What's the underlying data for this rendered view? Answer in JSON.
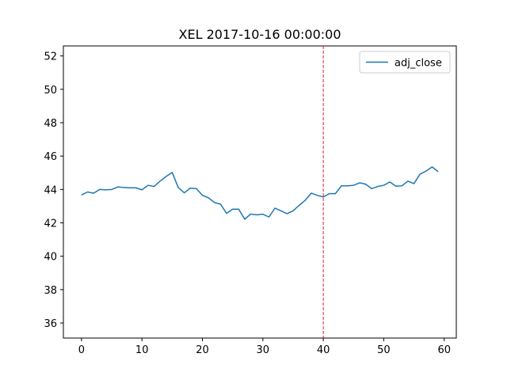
{
  "chart_data": {
    "type": "line",
    "title": "XEL 2017-10-16 00:00:00",
    "xlabel": "",
    "ylabel": "",
    "xlim": [
      -3,
      62
    ],
    "ylim": [
      35.1,
      52.6
    ],
    "x_ticks": [
      0,
      10,
      20,
      30,
      40,
      50,
      60
    ],
    "y_ticks": [
      36,
      38,
      40,
      42,
      44,
      46,
      48,
      50,
      52
    ],
    "grid": false,
    "legend_position": "top-right",
    "vline": {
      "x": 40,
      "color": "#d62728",
      "style": "dashed"
    },
    "series": [
      {
        "name": "adj_close",
        "color": "#1f77b4",
        "x": [
          0,
          1,
          2,
          3,
          4,
          5,
          6,
          7,
          8,
          9,
          10,
          11,
          12,
          13,
          14,
          15,
          16,
          17,
          18,
          19,
          20,
          21,
          22,
          23,
          24,
          25,
          26,
          27,
          28,
          29,
          30,
          31,
          32,
          33,
          34,
          35,
          36,
          37,
          38,
          39,
          40,
          41,
          42,
          43,
          44,
          45,
          46,
          47,
          48,
          49,
          50,
          51,
          52,
          53,
          54,
          55,
          56,
          57,
          58,
          59
        ],
        "values": [
          43.67,
          43.85,
          43.78,
          44.0,
          43.98,
          44.0,
          44.15,
          44.12,
          44.1,
          44.1,
          43.98,
          44.25,
          44.18,
          44.5,
          44.78,
          45.02,
          44.12,
          43.8,
          44.08,
          44.05,
          43.65,
          43.5,
          43.22,
          43.12,
          42.57,
          42.82,
          42.82,
          42.22,
          42.53,
          42.48,
          42.52,
          42.35,
          42.88,
          42.72,
          42.55,
          42.72,
          43.05,
          43.35,
          43.78,
          43.65,
          43.55,
          43.75,
          43.75,
          44.22,
          44.22,
          44.25,
          44.4,
          44.32,
          44.05,
          44.18,
          44.25,
          44.45,
          44.2,
          44.22,
          44.5,
          44.35,
          44.92,
          45.1,
          45.35,
          45.07
        ]
      }
    ]
  }
}
